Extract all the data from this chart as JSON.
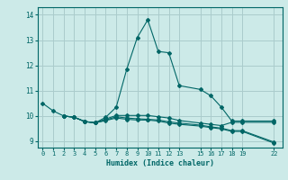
{
  "background_color": "#cceae8",
  "grid_color": "#aacccc",
  "line_color": "#006666",
  "xlabel": "Humidex (Indice chaleur)",
  "xlim": [
    -0.5,
    22.8
  ],
  "ylim": [
    8.75,
    14.3
  ],
  "yticks": [
    9,
    10,
    11,
    12,
    13,
    14
  ],
  "xticks": [
    0,
    1,
    2,
    3,
    4,
    5,
    6,
    7,
    8,
    9,
    10,
    11,
    12,
    13,
    15,
    16,
    17,
    18,
    19,
    22
  ],
  "xtick_labels": [
    "0",
    "1",
    "2",
    "3",
    "4",
    "5",
    "6",
    "7",
    "8",
    "9",
    "10",
    "11",
    "12",
    "13",
    "15",
    "16",
    "17",
    "18",
    "19",
    "22"
  ],
  "series": [
    {
      "x": [
        0,
        1,
        2,
        3,
        4,
        5,
        6,
        7,
        8,
        9,
        10,
        11,
        12,
        13,
        15,
        16,
        17,
        18,
        19,
        22
      ],
      "y": [
        10.5,
        10.2,
        10.0,
        9.95,
        9.78,
        9.73,
        9.95,
        10.35,
        11.85,
        13.1,
        13.8,
        12.55,
        12.5,
        11.2,
        11.05,
        10.8,
        10.35,
        9.8,
        9.8,
        9.8
      ]
    },
    {
      "x": [
        2,
        3,
        4,
        5,
        6,
        7,
        8,
        9,
        10,
        11,
        12,
        13,
        15,
        16,
        17,
        18,
        19,
        22
      ],
      "y": [
        10.0,
        9.95,
        9.78,
        9.73,
        9.88,
        10.02,
        10.02,
        10.02,
        10.02,
        9.97,
        9.92,
        9.82,
        9.72,
        9.67,
        9.62,
        9.75,
        9.75,
        9.75
      ]
    },
    {
      "x": [
        2,
        3,
        4,
        5,
        6,
        7,
        8,
        9,
        10,
        11,
        12,
        13,
        15,
        16,
        17,
        18,
        19,
        22
      ],
      "y": [
        10.0,
        9.95,
        9.78,
        9.73,
        9.84,
        9.97,
        9.92,
        9.89,
        9.87,
        9.84,
        9.77,
        9.72,
        9.64,
        9.57,
        9.52,
        9.42,
        9.42,
        8.97
      ]
    },
    {
      "x": [
        2,
        3,
        4,
        5,
        6,
        7,
        8,
        9,
        10,
        11,
        12,
        13,
        15,
        16,
        17,
        18,
        19,
        22
      ],
      "y": [
        10.0,
        9.95,
        9.78,
        9.73,
        9.82,
        9.92,
        9.87,
        9.84,
        9.84,
        9.8,
        9.72,
        9.67,
        9.6,
        9.54,
        9.49,
        9.39,
        9.39,
        8.93
      ]
    }
  ]
}
